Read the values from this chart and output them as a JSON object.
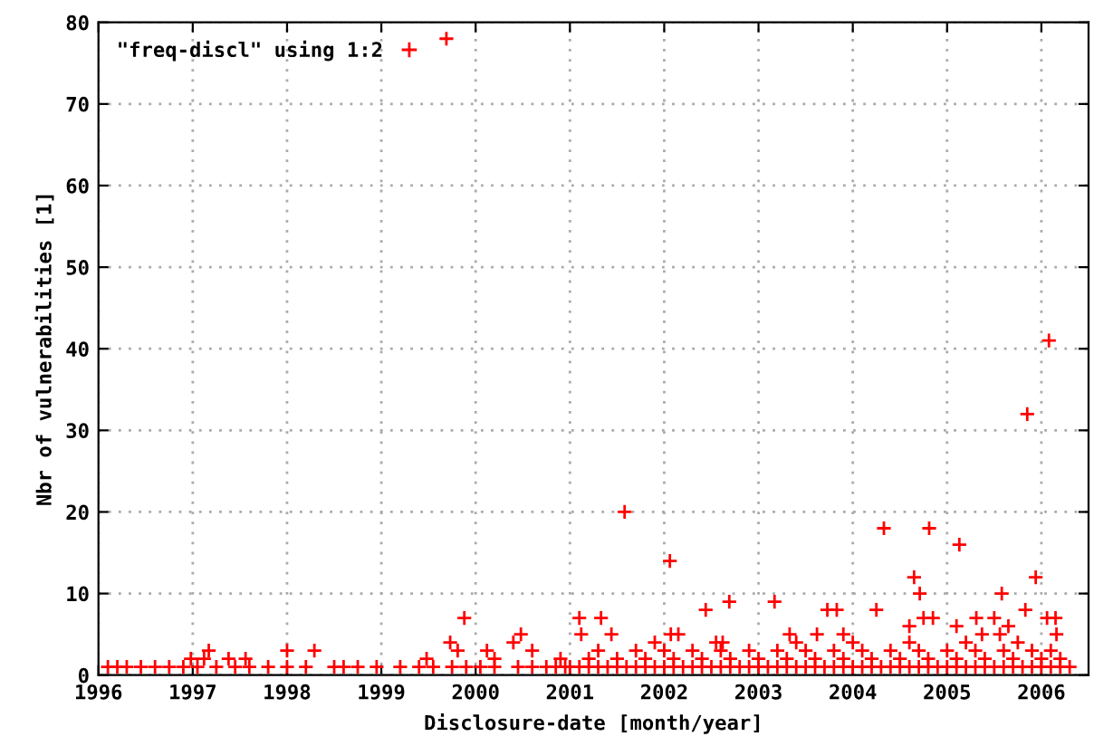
{
  "chart_data": {
    "type": "scatter",
    "xlabel": "Disclosure-date [month/year]",
    "ylabel": "Nbr of vulnerabilities [1]",
    "xlim": [
      1996,
      2006.5
    ],
    "xticks": [
      1996,
      1997,
      1998,
      1999,
      2000,
      2001,
      2002,
      2003,
      2004,
      2005,
      2006
    ],
    "ylim": [
      0,
      80
    ],
    "yticks": [
      0,
      10,
      20,
      30,
      40,
      50,
      60,
      70,
      80
    ],
    "grid": true,
    "legend": "top left",
    "marker": "cross",
    "series": [
      {
        "name": "\"freq-discl\" using 1:2",
        "color": "#ff0000",
        "x": [
          1996.1,
          1996.2,
          1996.3,
          1996.45,
          1996.6,
          1996.75,
          1996.9,
          1997.05,
          1997.25,
          1997.45,
          1997.6,
          1997.8,
          1998.0,
          1998.2,
          1998.5,
          1998.6,
          1998.75,
          1998.95,
          1999.2,
          1999.4,
          1999.55,
          1999.75,
          1999.9,
          2000.05,
          2000.2,
          2000.45,
          2000.6,
          2000.75,
          2000.85,
          2000.95,
          2001.0,
          2001.1,
          2001.2,
          2001.3,
          2001.4,
          2001.5,
          2001.6,
          2001.7,
          2001.8,
          2001.9,
          2002.0,
          2002.1,
          2002.2,
          2002.3,
          2002.4,
          2002.5,
          2002.6,
          2002.7,
          2002.8,
          2002.9,
          2003.0,
          2003.1,
          2003.2,
          2003.3,
          2003.4,
          2003.5,
          2003.6,
          2003.7,
          2003.8,
          2003.9,
          2004.0,
          2004.1,
          2004.2,
          2004.3,
          2004.4,
          2004.5,
          2004.6,
          2004.7,
          2004.8,
          2004.9,
          2005.0,
          2005.1,
          2005.2,
          2005.3,
          2005.4,
          2005.5,
          2005.6,
          2005.7,
          2005.8,
          2005.9,
          2006.0,
          2006.1,
          2006.2,
          2006.3,
          1996.98,
          1997.12,
          1997.38,
          1997.56,
          1999.48,
          2000.2,
          2000.9,
          2001.2,
          2001.5,
          2001.8,
          2002.1,
          2002.4,
          2002.7,
          2003.0,
          2003.3,
          2003.6,
          2003.9,
          2004.2,
          2004.5,
          2004.8,
          2005.1,
          2005.4,
          2005.7,
          2006.0,
          2006.2,
          1997.17,
          1998.0,
          1998.29,
          1999.81,
          2000.12,
          2000.6,
          2001.3,
          2001.7,
          2002.0,
          2002.3,
          2002.6,
          2002.9,
          2003.2,
          2003.5,
          2003.8,
          2004.1,
          2004.4,
          2004.7,
          2005.0,
          2005.3,
          2005.6,
          2005.9,
          2006.1,
          1999.73,
          2000.4,
          2001.9,
          2002.55,
          2002.62,
          2003.4,
          2004.0,
          2004.6,
          2005.2,
          2005.75,
          1999.69,
          1999.88,
          2000.48,
          2001.1,
          2001.12,
          2001.33,
          2001.44,
          2001.58,
          2002.06,
          2002.07,
          2002.15,
          2002.44,
          2002.69,
          2003.17,
          2003.33,
          2003.62,
          2003.73,
          2003.83,
          2003.9,
          2004.25,
          2004.33,
          2004.6,
          2004.65,
          2004.71,
          2004.75,
          2004.81,
          2004.85,
          2005.13,
          2005.1,
          2005.31,
          2005.37,
          2005.5,
          2005.56,
          2005.58,
          2005.65,
          2005.83,
          2005.85,
          2005.94,
          2006.06,
          2006.08,
          2006.15,
          2006.16
        ],
        "values": [
          1,
          1,
          1,
          1,
          1,
          1,
          1,
          1,
          1,
          1,
          1,
          1,
          1,
          1,
          1,
          1,
          1,
          1,
          1,
          1,
          1,
          1,
          1,
          1,
          1,
          1,
          1,
          1,
          1,
          1,
          1,
          1,
          1,
          1,
          1,
          1,
          1,
          1,
          1,
          1,
          1,
          1,
          1,
          1,
          1,
          1,
          1,
          1,
          1,
          1,
          1,
          1,
          1,
          1,
          1,
          1,
          1,
          1,
          1,
          1,
          1,
          1,
          1,
          1,
          1,
          1,
          1,
          1,
          1,
          1,
          1,
          1,
          1,
          1,
          1,
          1,
          1,
          1,
          1,
          1,
          1,
          1,
          1,
          1,
          2,
          2,
          2,
          2,
          2,
          2,
          2,
          2,
          2,
          2,
          2,
          2,
          2,
          2,
          2,
          2,
          2,
          2,
          2,
          2,
          2,
          2,
          2,
          2,
          2,
          3,
          3,
          3,
          3,
          3,
          3,
          3,
          3,
          3,
          3,
          3,
          3,
          3,
          3,
          3,
          3,
          3,
          3,
          3,
          3,
          3,
          3,
          3,
          4,
          4,
          4,
          4,
          4,
          4,
          4,
          4,
          4,
          4,
          78,
          7,
          5,
          7,
          5,
          7,
          5,
          20,
          14,
          5,
          5,
          8,
          9,
          9,
          5,
          5,
          8,
          8,
          5,
          8,
          18,
          6,
          12,
          10,
          7,
          18,
          7,
          16,
          6,
          7,
          5,
          7,
          5,
          10,
          6,
          8,
          32,
          12,
          7,
          41,
          7,
          5
        ]
      }
    ]
  }
}
